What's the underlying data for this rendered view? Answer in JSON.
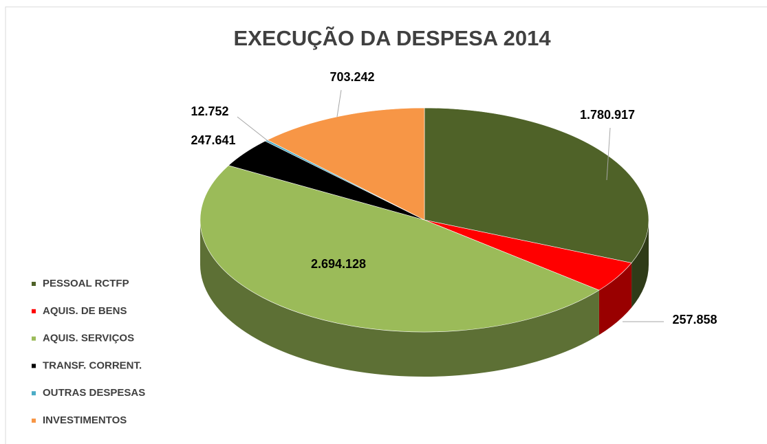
{
  "chart_data": {
    "type": "pie",
    "title": "EXECUÇÃO DA DESPESA 2014",
    "categories": [
      "PESSOAL RCTFP",
      "AQUIS. DE BENS",
      "AQUIS. SERVIÇOS",
      "TRANSF. CORRENT.",
      "OUTRAS DESPESAS",
      "INVESTIMENTOS"
    ],
    "values": [
      1780917,
      257858,
      2694128,
      247641,
      12752,
      703242
    ],
    "value_labels": [
      "1.780.917",
      "257.858",
      "2.694.128",
      "247.641",
      "12.752",
      "703.242"
    ],
    "colors": [
      "#4f6228",
      "#ff0000",
      "#9bbb59",
      "#000000",
      "#4bacc6",
      "#f79646"
    ],
    "legend": "left"
  }
}
